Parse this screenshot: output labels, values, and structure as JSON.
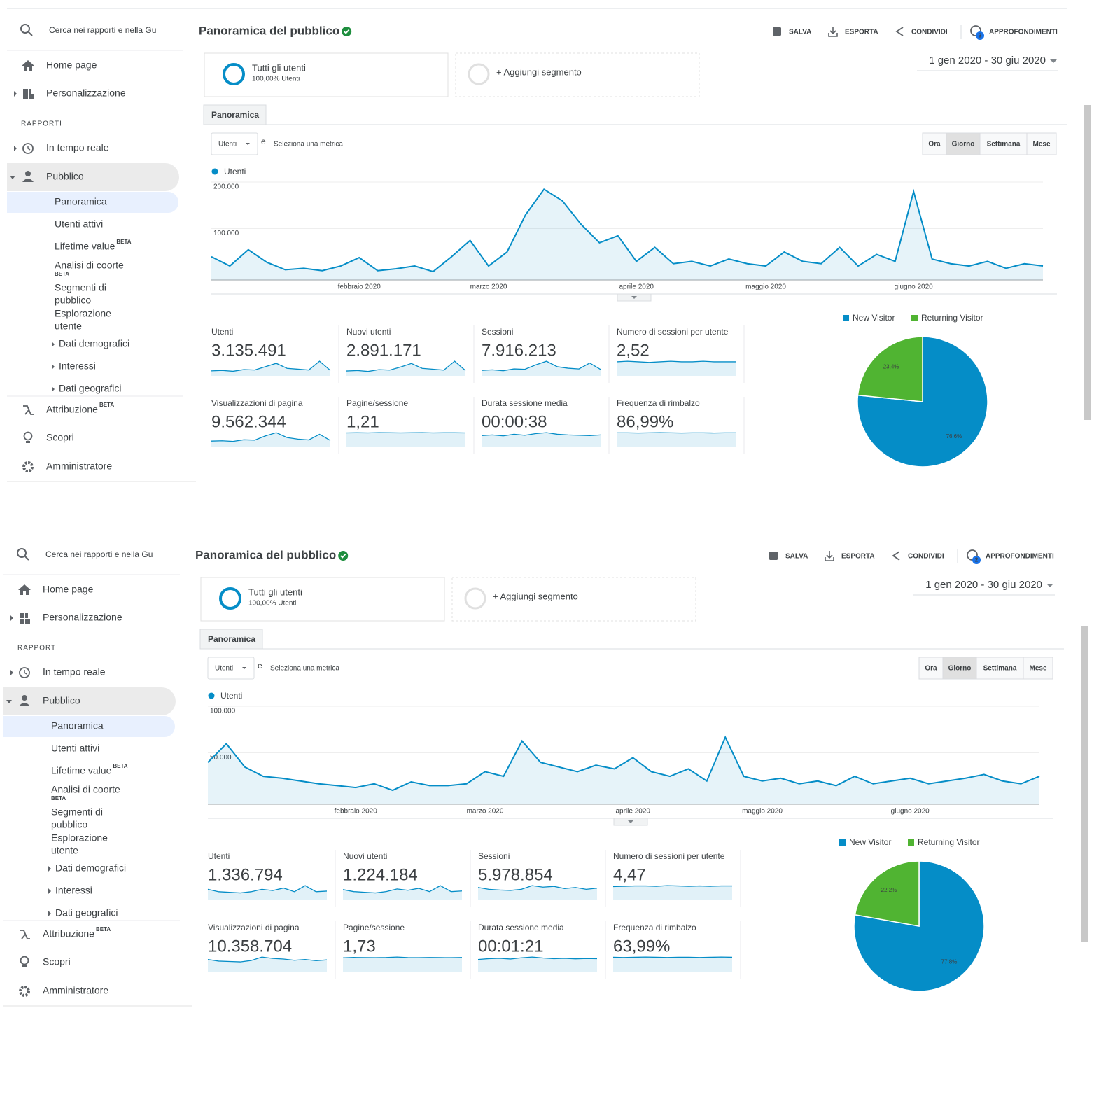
{
  "panels": [
    {
      "sidebar": {
        "search": "Cerca nei rapporti e nella Gu",
        "section": "RAPPORTI",
        "menu": [
          {
            "label": "Home page"
          },
          {
            "label": "Personalizzazione"
          },
          {
            "label": "In tempo reale"
          },
          {
            "label": "Pubblico"
          },
          {
            "label": "Panoramica"
          },
          {
            "label": "Utenti attivi"
          },
          {
            "label": "Lifetime value",
            "badge": "BETA"
          },
          {
            "label": "Analisi di coorte",
            "badge": "BETA"
          },
          {
            "lines": [
              "Segmenti di",
              "pubblico"
            ]
          },
          {
            "lines": [
              "Esplorazione",
              "utente"
            ]
          },
          {
            "label": "Dati demografici"
          },
          {
            "label": "Interessi"
          },
          {
            "label": "Dati geografici"
          },
          {
            "label": "Attribuzione",
            "badge": "BETA"
          },
          {
            "label": "Scopri"
          },
          {
            "label": "Amministratore"
          }
        ]
      },
      "header": {
        "title": "Panoramica del pubblico",
        "actions": [
          "SALVA",
          "ESPORTA",
          "CONDIVIDI",
          "APPROFONDIMENTI"
        ],
        "insights_count": 3
      },
      "segments": {
        "name": "Tutti gli utenti",
        "share": "100,00% Utenti",
        "add": "+ Aggiungi segmento"
      },
      "date_range": "1 gen 2020 - 30 giu 2020",
      "tab": "Panoramica",
      "metric_selector": {
        "metric": "Utenti",
        "connector": "e",
        "link": "Seleziona una metrica"
      },
      "periods": [
        "Ora",
        "Giorno",
        "Settimana",
        "Mese"
      ],
      "active_period": 1,
      "chart": {
        "type": "line",
        "categories": [
          null,
          null,
          null,
          null,
          null,
          null,
          null,
          null,
          "febbraio 2020",
          null,
          null,
          null,
          null,
          null,
          null,
          "marzo 2020",
          null,
          null,
          null,
          null,
          null,
          null,
          null,
          "aprile 2020",
          null,
          null,
          null,
          null,
          null,
          null,
          "maggio 2020",
          null,
          null,
          null,
          null,
          null,
          null,
          null,
          "giugno 2020",
          null,
          null,
          null,
          null,
          null,
          null,
          null
        ],
        "series": [
          {
            "name": "Utenti",
            "color": "#058dc7",
            "values": [
              50000,
              30000,
              65000,
              38000,
              22000,
              25000,
              20000,
              30000,
              48000,
              20000,
              24000,
              30000,
              18000,
              50000,
              85000,
              30000,
              60000,
              140000,
              195000,
              170000,
              120000,
              80000,
              95000,
              40000,
              70000,
              35000,
              40000,
              30000,
              45000,
              35000,
              30000,
              60000,
              40000,
              35000,
              70000,
              30000,
              55000,
              40000,
              190000,
              45000,
              35000,
              30000,
              40000,
              25000,
              35000,
              30000
            ]
          }
        ],
        "ylim": [
          0,
          200000
        ],
        "yticks": [
          {
            "value": 100000,
            "label": "100.000"
          },
          {
            "value": 200000,
            "label": "200.000"
          }
        ]
      },
      "metrics": [
        {
          "label": "Utenti",
          "value": "3.135.491",
          "trend": [
            12000,
            13000,
            11000,
            15000,
            14000,
            22000,
            30000,
            18000,
            16000,
            14000,
            35000,
            13000
          ]
        },
        {
          "label": "Nuovi utenti",
          "value": "2.891.171",
          "trend": [
            11000,
            12000,
            10000,
            14000,
            13000,
            20000,
            28000,
            17000,
            15000,
            13000,
            33000,
            12000
          ]
        },
        {
          "label": "Sessioni",
          "value": "7.916.213",
          "trend": [
            30000,
            33000,
            28000,
            38000,
            36000,
            60000,
            80000,
            50000,
            42000,
            38000,
            70000,
            35000
          ]
        },
        {
          "label": "Numero di sessioni per utente",
          "value": "2,52",
          "trend": [
            2.5,
            2.6,
            2.5,
            2.4,
            2.5,
            2.6,
            2.5,
            2.5,
            2.6,
            2.5,
            2.5,
            2.5
          ]
        },
        {
          "label": "Visualizzazioni di pagina",
          "value": "9.562.344",
          "trend": [
            38000,
            40000,
            36000,
            46000,
            44000,
            70000,
            90000,
            60000,
            50000,
            45000,
            80000,
            42000
          ]
        },
        {
          "label": "Pagine/sessione",
          "value": "1,21",
          "trend": [
            1.2,
            1.21,
            1.2,
            1.22,
            1.21,
            1.2,
            1.21,
            1.22,
            1.2,
            1.21,
            1.21,
            1.2
          ]
        },
        {
          "label": "Durata sessione media",
          "value": "00:00:38",
          "trend": [
            36,
            38,
            35,
            40,
            37,
            42,
            45,
            40,
            38,
            37,
            36,
            38
          ]
        },
        {
          "label": "Frequenza di rimbalzo",
          "value": "86,99%",
          "trend": [
            87,
            87,
            86,
            87,
            88,
            87,
            86,
            87,
            87,
            86,
            87,
            87
          ]
        }
      ],
      "pie": {
        "type": "pie",
        "categories": [
          "New Visitor",
          "Returning Visitor"
        ],
        "values": [
          76.6,
          23.4
        ],
        "value_labels": [
          "76,6%",
          "23,4%"
        ],
        "colors": [
          "#058dc7",
          "#50b432"
        ]
      }
    },
    {
      "sidebar": {
        "search": "Cerca nei rapporti e nella Gu",
        "section": "RAPPORTI",
        "menu": [
          {
            "label": "Home page"
          },
          {
            "label": "Personalizzazione"
          },
          {
            "label": "In tempo reale"
          },
          {
            "label": "Pubblico"
          },
          {
            "label": "Panoramica"
          },
          {
            "label": "Utenti attivi"
          },
          {
            "label": "Lifetime value",
            "badge": "BETA"
          },
          {
            "label": "Analisi di coorte",
            "badge": "BETA"
          },
          {
            "lines": [
              "Segmenti di",
              "pubblico"
            ]
          },
          {
            "lines": [
              "Esplorazione",
              "utente"
            ]
          },
          {
            "label": "Dati demografici"
          },
          {
            "label": "Interessi"
          },
          {
            "label": "Dati geografici"
          },
          {
            "label": "Attribuzione",
            "badge": "BETA"
          },
          {
            "label": "Scopri"
          },
          {
            "label": "Amministratore"
          }
        ]
      },
      "header": {
        "title": "Panoramica del pubblico",
        "actions": [
          "SALVA",
          "ESPORTA",
          "CONDIVIDI",
          "APPROFONDIMENTI"
        ],
        "insights_count": 2
      },
      "segments": {
        "name": "Tutti gli utenti",
        "share": "100,00% Utenti",
        "add": "+ Aggiungi segmento"
      },
      "date_range": "1 gen 2020 - 30 giu 2020",
      "tab": "Panoramica",
      "metric_selector": {
        "metric": "Utenti",
        "connector": "e",
        "link": "Seleziona una metrica"
      },
      "periods": [
        "Ora",
        "Giorno",
        "Settimana",
        "Mese"
      ],
      "active_period": 1,
      "chart": {
        "type": "line",
        "categories": [
          null,
          null,
          null,
          null,
          null,
          null,
          null,
          null,
          "febbraio 2020",
          null,
          null,
          null,
          null,
          null,
          null,
          "marzo 2020",
          null,
          null,
          null,
          null,
          null,
          null,
          null,
          "aprile 2020",
          null,
          null,
          null,
          null,
          null,
          null,
          "maggio 2020",
          null,
          null,
          null,
          null,
          null,
          null,
          null,
          "giugno 2020",
          null,
          null,
          null,
          null,
          null,
          null,
          null
        ],
        "series": [
          {
            "name": "Utenti",
            "color": "#058dc7",
            "values": [
              45000,
              65000,
              40000,
              30000,
              28000,
              25000,
              22000,
              20000,
              18000,
              22000,
              15000,
              24000,
              20000,
              20000,
              22000,
              35000,
              30000,
              68000,
              45000,
              40000,
              35000,
              42000,
              38000,
              50000,
              35000,
              30000,
              38000,
              25000,
              72000,
              30000,
              25000,
              28000,
              22000,
              25000,
              20000,
              30000,
              22000,
              25000,
              28000,
              22000,
              25000,
              28000,
              32000,
              25000,
              22000,
              30000
            ]
          }
        ],
        "ylim": [
          0,
          100000
        ],
        "yticks": [
          {
            "value": 50000,
            "label": "50.000"
          },
          {
            "value": 100000,
            "label": "100.000"
          }
        ]
      },
      "metrics": [
        {
          "label": "Utenti",
          "value": "1.336.794",
          "trend": [
            9000,
            7000,
            6500,
            6000,
            7000,
            9000,
            8000,
            10000,
            7000,
            12000,
            7000,
            7500
          ]
        },
        {
          "label": "Nuovi utenti",
          "value": "1.224.184",
          "trend": [
            8000,
            6500,
            6000,
            5500,
            6500,
            8500,
            7500,
            9000,
            6500,
            11000,
            6500,
            7000
          ]
        },
        {
          "label": "Sessioni",
          "value": "5.978.854",
          "trend": [
            35000,
            30000,
            28000,
            27000,
            30000,
            40000,
            36000,
            38000,
            32000,
            35000,
            30000,
            33000
          ]
        },
        {
          "label": "Numero di sessioni per utente",
          "value": "4,47",
          "trend": [
            4.3,
            4.4,
            4.5,
            4.5,
            4.4,
            4.6,
            4.5,
            4.4,
            4.5,
            4.4,
            4.5,
            4.5
          ]
        },
        {
          "label": "Visualizzazioni di pagina",
          "value": "10.358.704",
          "trend": [
            60000,
            52000,
            50000,
            48000,
            55000,
            72000,
            65000,
            62000,
            56000,
            60000,
            54000,
            58000
          ]
        },
        {
          "label": "Pagine/sessione",
          "value": "1,73",
          "trend": [
            1.7,
            1.75,
            1.73,
            1.72,
            1.74,
            1.8,
            1.73,
            1.72,
            1.74,
            1.73,
            1.72,
            1.74
          ]
        },
        {
          "label": "Durata sessione media",
          "value": "00:01:21",
          "trend": [
            75,
            80,
            82,
            78,
            85,
            90,
            84,
            80,
            82,
            79,
            81,
            80
          ]
        },
        {
          "label": "Frequenza di rimbalzo",
          "value": "63,99%",
          "trend": [
            64,
            63,
            64,
            65,
            64,
            63,
            64,
            64,
            63,
            64,
            65,
            64
          ]
        }
      ],
      "pie": {
        "type": "pie",
        "categories": [
          "New Visitor",
          "Returning Visitor"
        ],
        "values": [
          77.8,
          22.2
        ],
        "value_labels": [
          "77,8%",
          "22,2%"
        ],
        "colors": [
          "#058dc7",
          "#50b432"
        ]
      }
    }
  ]
}
